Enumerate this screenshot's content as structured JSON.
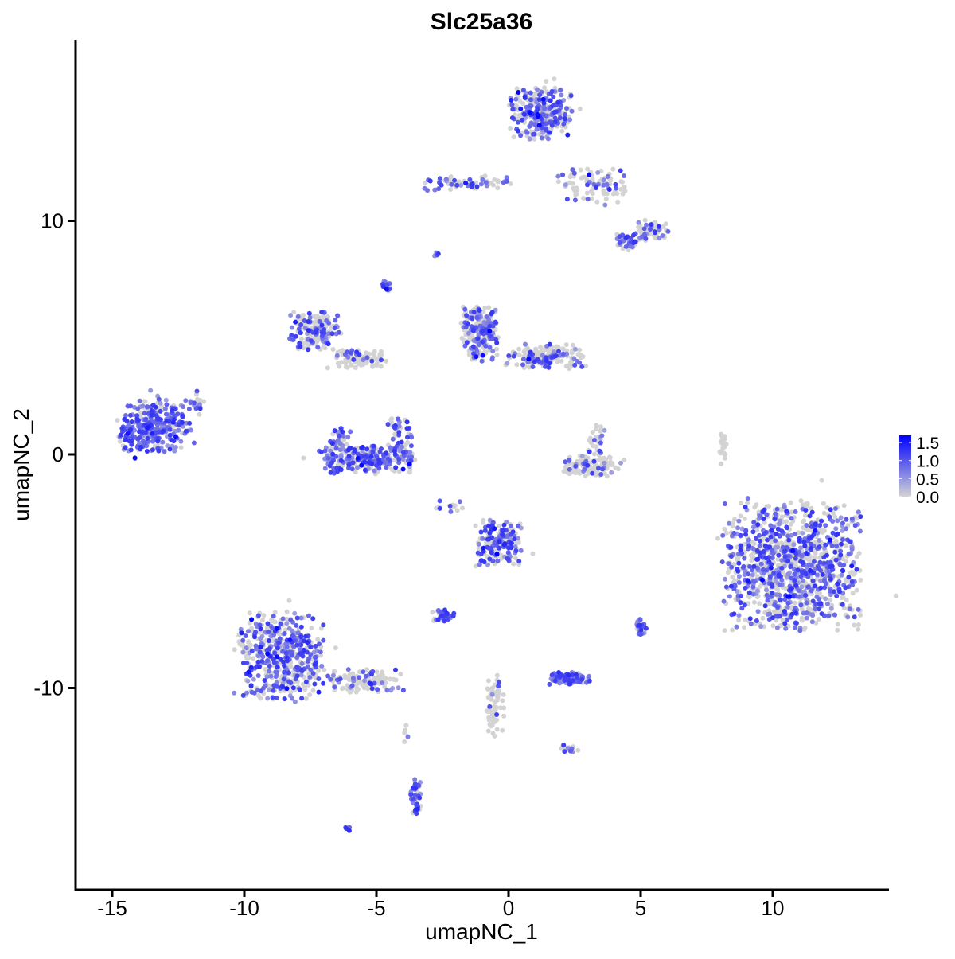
{
  "chart_data": {
    "type": "scatter",
    "title": "Slc25a36",
    "xlabel": "umapNC_1",
    "ylabel": "umapNC_2",
    "xlim": [
      -16.4,
      14.3
    ],
    "ylim": [
      -17.9,
      18.5
    ],
    "xticks": [
      -15,
      -10,
      -5,
      0,
      5,
      10
    ],
    "xtick_labels": [
      "-15",
      "-10",
      "-5",
      "0",
      "5",
      "10"
    ],
    "yticks": [
      -10,
      0,
      10
    ],
    "ytick_labels": [
      "-10",
      "0",
      "10"
    ],
    "grid": false,
    "legend": {
      "placement": "right",
      "ticks": [
        0.0,
        0.5,
        1.0,
        1.5
      ],
      "tick_labels": [
        "0.0",
        "0.5",
        "1.0",
        "1.5"
      ],
      "range": [
        0,
        1.7
      ]
    },
    "colors": {
      "low": "#d3d3d3",
      "high": "#0000ff"
    },
    "clusters": [
      {
        "cx": -13.4,
        "cy": 1.2,
        "rx": 1.3,
        "ry": 1.05,
        "n": 320,
        "expr": 0.75
      },
      {
        "cx": -11.9,
        "cy": 2.2,
        "rx": 0.35,
        "ry": 0.5,
        "n": 20,
        "expr": 0.5
      },
      {
        "cx": -7.3,
        "cy": 5.3,
        "rx": 0.9,
        "ry": 0.75,
        "n": 170,
        "expr": 0.4
      },
      {
        "cx": -5.6,
        "cy": 4.1,
        "rx": 1.0,
        "ry": 0.4,
        "n": 90,
        "expr": 0.15
      },
      {
        "cx": -5.3,
        "cy": -0.2,
        "rx": 1.7,
        "ry": 0.55,
        "n": 260,
        "expr": 0.6
      },
      {
        "cx": -6.4,
        "cy": 0.6,
        "rx": 0.4,
        "ry": 0.5,
        "n": 40,
        "expr": 0.5
      },
      {
        "cx": -4.1,
        "cy": 0.8,
        "rx": 0.4,
        "ry": 0.7,
        "n": 40,
        "expr": 0.5
      },
      {
        "cx": -1.1,
        "cy": 5.2,
        "rx": 0.65,
        "ry": 1.1,
        "n": 230,
        "expr": 0.45
      },
      {
        "cx": 1.4,
        "cy": 4.2,
        "rx": 1.4,
        "ry": 0.5,
        "n": 180,
        "expr": 0.3
      },
      {
        "cx": 1.2,
        "cy": 14.6,
        "rx": 1.1,
        "ry": 1.0,
        "n": 300,
        "expr": 0.55
      },
      {
        "cx": 3.2,
        "cy": 11.5,
        "rx": 1.3,
        "ry": 0.7,
        "n": 90,
        "expr": 0.3
      },
      {
        "cx": 5.5,
        "cy": 9.6,
        "rx": 0.6,
        "ry": 0.4,
        "n": 60,
        "expr": 0.3
      },
      {
        "cx": 4.5,
        "cy": 9.1,
        "rx": 0.45,
        "ry": 0.4,
        "n": 35,
        "expr": 0.6
      },
      {
        "cx": -1.6,
        "cy": 11.6,
        "rx": 1.6,
        "ry": 0.3,
        "n": 70,
        "expr": 0.35
      },
      {
        "cx": 3.1,
        "cy": -0.5,
        "rx": 1.0,
        "ry": 0.4,
        "n": 130,
        "expr": 0.2
      },
      {
        "cx": 3.3,
        "cy": 0.6,
        "rx": 0.3,
        "ry": 0.6,
        "n": 30,
        "expr": 0.4
      },
      {
        "cx": 10.7,
        "cy": -4.8,
        "rx": 2.4,
        "ry": 2.5,
        "n": 1100,
        "expr": 0.5
      },
      {
        "cx": -8.6,
        "cy": -8.6,
        "rx": 1.5,
        "ry": 1.7,
        "n": 520,
        "expr": 0.5
      },
      {
        "cx": -5.5,
        "cy": -9.7,
        "rx": 1.4,
        "ry": 0.45,
        "n": 110,
        "expr": 0.35
      },
      {
        "cx": -0.4,
        "cy": -3.8,
        "rx": 0.8,
        "ry": 0.9,
        "n": 190,
        "expr": 0.45
      },
      {
        "cx": -2.5,
        "cy": -6.9,
        "rx": 0.4,
        "ry": 0.25,
        "n": 45,
        "expr": 0.7
      },
      {
        "cx": 2.3,
        "cy": -9.6,
        "rx": 0.7,
        "ry": 0.25,
        "n": 90,
        "expr": 0.8
      },
      {
        "cx": 5.0,
        "cy": -7.4,
        "rx": 0.2,
        "ry": 0.35,
        "n": 20,
        "expr": 0.7
      },
      {
        "cx": -3.5,
        "cy": -14.6,
        "rx": 0.2,
        "ry": 0.8,
        "n": 45,
        "expr": 0.6
      },
      {
        "cx": -0.5,
        "cy": -10.8,
        "rx": 0.3,
        "ry": 1.3,
        "n": 60,
        "expr": 0.1
      },
      {
        "cx": -6.1,
        "cy": -16.0,
        "rx": 0.1,
        "ry": 0.1,
        "n": 6,
        "expr": 0.6
      },
      {
        "cx": -4.6,
        "cy": 7.3,
        "rx": 0.15,
        "ry": 0.3,
        "n": 12,
        "expr": 0.7
      },
      {
        "cx": 8.1,
        "cy": 0.2,
        "rx": 0.15,
        "ry": 0.7,
        "n": 20,
        "expr": 0.0
      },
      {
        "cx": 2.3,
        "cy": -12.6,
        "rx": 0.3,
        "ry": 0.15,
        "n": 15,
        "expr": 0.6
      },
      {
        "cx": -2.7,
        "cy": 8.6,
        "rx": 0.12,
        "ry": 0.12,
        "n": 6,
        "expr": 0.5
      },
      {
        "cx": -2.2,
        "cy": -2.2,
        "rx": 0.6,
        "ry": 0.3,
        "n": 12,
        "expr": 0.3
      },
      {
        "cx": -3.9,
        "cy": -12.0,
        "rx": 0.1,
        "ry": 0.4,
        "n": 6,
        "expr": 0.1
      }
    ]
  }
}
